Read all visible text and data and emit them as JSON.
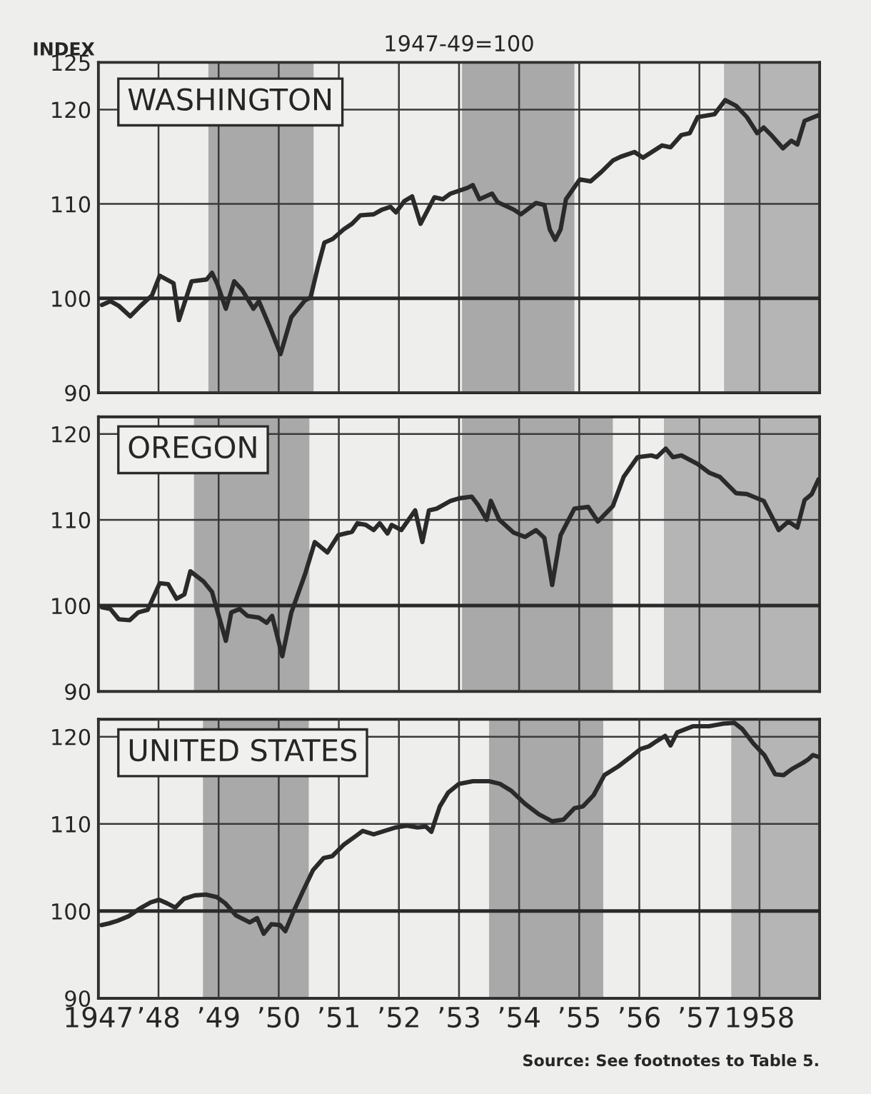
{
  "chart_data": [
    {
      "type": "line",
      "title": "WASHINGTON",
      "subtitle": "1947-49=100",
      "ylabel": "INDEX",
      "xlim": [
        1947,
        1959
      ],
      "ylim": [
        90,
        125
      ],
      "yticks": [
        90,
        100,
        110,
        120,
        125
      ],
      "xticks": [
        1947,
        1948,
        1949,
        1950,
        1951,
        1952,
        1953,
        1954,
        1955,
        1956,
        1957,
        1958,
        1959
      ],
      "tick_labels": "y",
      "grid": true,
      "legend": false,
      "ref_lines": [
        {
          "axis": "y",
          "value": 100,
          "color": "#2a2a2a",
          "line_style": "solid"
        }
      ],
      "bands": [
        {
          "axis": "x",
          "from": 1948.83,
          "to": 1950.58,
          "color": "#a9a9a9"
        },
        {
          "axis": "x",
          "from": 1953.05,
          "to": 1954.92,
          "color": "#a9a9a9"
        },
        {
          "axis": "x",
          "from": 1957.41,
          "to": 1959,
          "color": "#b5b5b5"
        }
      ],
      "series": [
        {
          "color": "#2a2a2a",
          "x": [
            1947.06,
            1947.2,
            1947.34,
            1947.53,
            1947.7,
            1947.89,
            1948.02,
            1948.25,
            1948.34,
            1948.55,
            1948.8,
            1948.89,
            1948.98,
            1949.12,
            1949.26,
            1949.39,
            1949.58,
            1949.67,
            1949.85,
            1950.03,
            1950.21,
            1950.44,
            1950.53,
            1950.65,
            1950.76,
            1950.9,
            1951.08,
            1951.22,
            1951.36,
            1951.58,
            1951.72,
            1951.86,
            1951.95,
            1952.09,
            1952.22,
            1952.36,
            1952.59,
            1952.73,
            1952.86,
            1953.14,
            1953.23,
            1953.34,
            1953.55,
            1953.64,
            1953.91,
            1954.03,
            1954.28,
            1954.42,
            1954.51,
            1954.6,
            1954.69,
            1954.78,
            1955.01,
            1955.19,
            1955.37,
            1955.56,
            1955.69,
            1955.92,
            1956.06,
            1956.38,
            1956.52,
            1956.7,
            1956.84,
            1956.97,
            1957.25,
            1957.43,
            1957.61,
            1957.79,
            1957.96,
            1958.07,
            1958.21,
            1958.39,
            1958.53,
            1958.63,
            1958.75,
            1958.98
          ],
          "values": [
            99.3,
            99.7,
            99.2,
            98.1,
            99.2,
            100.3,
            102.4,
            101.6,
            97.7,
            101.8,
            102.0,
            102.7,
            101.5,
            98.9,
            101.8,
            100.9,
            98.9,
            99.7,
            97.0,
            94.1,
            98.0,
            99.8,
            100.1,
            103.3,
            105.9,
            106.3,
            107.3,
            107.9,
            108.8,
            108.9,
            109.4,
            109.7,
            109.1,
            110.3,
            110.8,
            107.9,
            110.7,
            110.5,
            111.1,
            111.7,
            112.0,
            110.5,
            111.1,
            110.2,
            109.4,
            108.9,
            110.1,
            109.9,
            107.3,
            106.2,
            107.3,
            110.5,
            112.6,
            112.4,
            113.4,
            114.6,
            115.0,
            115.5,
            114.9,
            116.2,
            116.0,
            117.3,
            117.5,
            119.2,
            119.5,
            121.0,
            120.4,
            119.2,
            117.5,
            118.1,
            117.2,
            115.9,
            116.7,
            116.3,
            118.8,
            119.4
          ]
        }
      ]
    },
    {
      "type": "line",
      "title": "OREGON",
      "xlim": [
        1947,
        1959
      ],
      "ylim": [
        90,
        122
      ],
      "yticks": [
        90,
        100,
        110,
        120
      ],
      "xticks": [
        1947,
        1948,
        1949,
        1950,
        1951,
        1952,
        1953,
        1954,
        1955,
        1956,
        1957,
        1958,
        1959
      ],
      "tick_labels": "y",
      "grid": true,
      "legend": false,
      "ref_lines": [
        {
          "axis": "y",
          "value": 100,
          "color": "#2a2a2a",
          "line_style": "solid"
        }
      ],
      "bands": [
        {
          "axis": "x",
          "from": 1948.59,
          "to": 1950.51,
          "color": "#a9a9a9"
        },
        {
          "axis": "x",
          "from": 1953.05,
          "to": 1955.56,
          "color": "#a9a9a9"
        },
        {
          "axis": "x",
          "from": 1956.41,
          "to": 1959,
          "color": "#b5b5b5"
        }
      ],
      "series": [
        {
          "color": "#2a2a2a",
          "x": [
            1947.06,
            1947.2,
            1947.34,
            1947.52,
            1947.66,
            1947.82,
            1948.02,
            1948.16,
            1948.3,
            1948.43,
            1948.53,
            1948.75,
            1948.89,
            1949.12,
            1949.21,
            1949.35,
            1949.48,
            1949.67,
            1949.8,
            1949.89,
            1950.06,
            1950.21,
            1950.44,
            1950.6,
            1950.81,
            1950.99,
            1951.22,
            1951.31,
            1951.45,
            1951.58,
            1951.68,
            1951.81,
            1951.88,
            1952.04,
            1952.27,
            1952.39,
            1952.5,
            1952.63,
            1952.86,
            1953.0,
            1953.21,
            1953.32,
            1953.46,
            1953.53,
            1953.67,
            1953.91,
            1954.1,
            1954.28,
            1954.42,
            1954.55,
            1954.69,
            1954.92,
            1955.15,
            1955.31,
            1955.56,
            1955.74,
            1955.97,
            1956.2,
            1956.29,
            1956.44,
            1956.56,
            1956.7,
            1956.97,
            1957.16,
            1957.34,
            1957.61,
            1957.79,
            1958.07,
            1958.32,
            1958.48,
            1958.63,
            1958.75,
            1958.87,
            1958.98
          ],
          "values": [
            99.8,
            99.6,
            98.4,
            98.3,
            99.2,
            99.5,
            102.6,
            102.5,
            100.8,
            101.3,
            104.0,
            102.8,
            101.6,
            95.9,
            99.2,
            99.6,
            98.8,
            98.6,
            98.0,
            98.8,
            94.1,
            99.2,
            103.7,
            107.4,
            106.2,
            108.2,
            108.6,
            109.6,
            109.4,
            108.8,
            109.6,
            108.4,
            109.4,
            108.8,
            111.1,
            107.4,
            111.1,
            111.3,
            112.2,
            112.5,
            112.7,
            111.7,
            110.0,
            112.2,
            110.0,
            108.5,
            108.0,
            108.8,
            107.9,
            102.4,
            108.2,
            111.3,
            111.5,
            109.8,
            111.6,
            115.0,
            117.3,
            117.5,
            117.3,
            118.3,
            117.3,
            117.5,
            116.5,
            115.5,
            115.0,
            113.1,
            113.0,
            112.2,
            108.8,
            109.8,
            109.1,
            112.3,
            113.0,
            114.7
          ]
        }
      ]
    },
    {
      "type": "line",
      "title": "UNITED STATES",
      "xlim": [
        1947,
        1959
      ],
      "ylim": [
        90,
        122
      ],
      "yticks": [
        90,
        100,
        110,
        120
      ],
      "xticks": [
        1947,
        {
          "value": 1948,
          "label": "’48"
        },
        {
          "value": 1949,
          "label": "’49"
        },
        {
          "value": 1950,
          "label": "’50"
        },
        {
          "value": 1951,
          "label": "’51"
        },
        {
          "value": 1952,
          "label": "’52"
        },
        {
          "value": 1953,
          "label": "’53"
        },
        {
          "value": 1954,
          "label": "’54"
        },
        {
          "value": 1955,
          "label": "’55"
        },
        {
          "value": 1956,
          "label": "’56"
        },
        {
          "value": 1957,
          "label": "’57"
        },
        1958,
        {
          "value": 1959,
          "label": null
        }
      ],
      "grid": true,
      "legend": false,
      "ref_lines": [
        {
          "axis": "y",
          "value": 100,
          "color": "#2a2a2a",
          "line_style": "solid"
        }
      ],
      "bands": [
        {
          "axis": "x",
          "from": 1948.74,
          "to": 1950.5,
          "color": "#a9a9a9"
        },
        {
          "axis": "x",
          "from": 1953.5,
          "to": 1955.4,
          "color": "#a9a9a9"
        },
        {
          "axis": "x",
          "from": 1957.53,
          "to": 1959,
          "color": "#b5b5b5"
        }
      ],
      "annotations": [
        "Source: See footnotes to Table 5."
      ],
      "series": [
        {
          "color": "#2a2a2a",
          "x": [
            1947.05,
            1947.18,
            1947.32,
            1947.5,
            1947.69,
            1947.87,
            1948.01,
            1948.14,
            1948.28,
            1948.42,
            1948.6,
            1948.79,
            1948.97,
            1949.11,
            1949.29,
            1949.52,
            1949.64,
            1949.75,
            1949.88,
            1950.02,
            1950.11,
            1950.25,
            1950.39,
            1950.57,
            1950.75,
            1950.89,
            1951.08,
            1951.26,
            1951.4,
            1951.58,
            1951.76,
            1951.95,
            1952.13,
            1952.31,
            1952.45,
            1952.54,
            1952.68,
            1952.82,
            1953.0,
            1953.23,
            1953.5,
            1953.68,
            1953.87,
            1954.1,
            1954.33,
            1954.55,
            1954.74,
            1954.92,
            1955.06,
            1955.24,
            1955.42,
            1955.65,
            1955.84,
            1956.02,
            1956.16,
            1956.29,
            1956.43,
            1956.52,
            1956.63,
            1956.89,
            1957.16,
            1957.39,
            1957.58,
            1957.71,
            1957.9,
            1958.08,
            1958.26,
            1958.4,
            1958.54,
            1958.72,
            1958.81,
            1958.89,
            1958.98
          ],
          "values": [
            98.4,
            98.6,
            98.9,
            99.4,
            100.3,
            101.0,
            101.3,
            100.9,
            100.4,
            101.4,
            101.8,
            101.9,
            101.6,
            100.9,
            99.5,
            98.7,
            99.2,
            97.4,
            98.5,
            98.4,
            97.7,
            100.0,
            102.1,
            104.7,
            106.1,
            106.3,
            107.6,
            108.5,
            109.2,
            108.8,
            109.2,
            109.6,
            109.8,
            109.6,
            109.7,
            109.1,
            112.0,
            113.6,
            114.6,
            114.9,
            114.9,
            114.6,
            113.8,
            112.3,
            111.1,
            110.3,
            110.5,
            111.8,
            112.0,
            113.3,
            115.6,
            116.6,
            117.6,
            118.6,
            118.9,
            119.5,
            120.1,
            119.0,
            120.5,
            121.2,
            121.2,
            121.5,
            121.6,
            120.9,
            119.2,
            117.9,
            115.7,
            115.6,
            116.3,
            117.0,
            117.4,
            117.9,
            117.7
          ]
        }
      ]
    }
  ]
}
